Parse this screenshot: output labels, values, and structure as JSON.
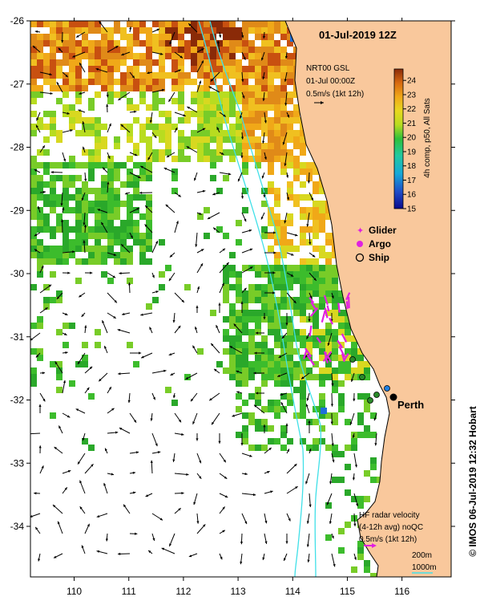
{
  "map": {
    "date_title": "01-Jul-2019 12Z",
    "nrt_label": "NRT00 GSL",
    "nrt_time": "01-Jul 00:00Z",
    "nrt_scale": "0.5m/s (1kt 12h)",
    "hf_title": "HF radar velocity",
    "hf_subtitle": "(4-12h avg) noQC",
    "hf_scale": "0.5m/s (1kt 12h)",
    "contour_200": "200m",
    "contour_1000": "1000m",
    "city": "Perth",
    "credit": "© IMOS 06-Jul-2019 12:32 Hobart",
    "colorbar_label": "4h comp, p50, All Sats",
    "colorbar_ticks": [
      "24",
      "23",
      "22",
      "21",
      "20",
      "19",
      "18",
      "17",
      "16",
      "15"
    ],
    "colorbar_min": 15,
    "colorbar_max": 24.8,
    "lon_ticks": [
      "110",
      "111",
      "112",
      "113",
      "114",
      "115",
      "116"
    ],
    "lat_ticks": [
      "-26",
      "-27",
      "-28",
      "-29",
      "-30",
      "-31",
      "-32",
      "-33",
      "-34"
    ],
    "lon_range": [
      109.2,
      116.9
    ],
    "lat_range": [
      -34.8,
      -26.0
    ],
    "legend": [
      {
        "label": "Glider",
        "symbol": "star",
        "color": "#e020e0"
      },
      {
        "label": "Argo",
        "symbol": "circle",
        "color": "#e020e0"
      },
      {
        "label": "Ship",
        "symbol": "ring",
        "color": "#000000"
      }
    ],
    "colors": {
      "land": "#f9c89c",
      "isobath_200": "#40e0e8",
      "isobath_1000": "#40e0e8",
      "hf_arrow": "#e020e0"
    }
  }
}
